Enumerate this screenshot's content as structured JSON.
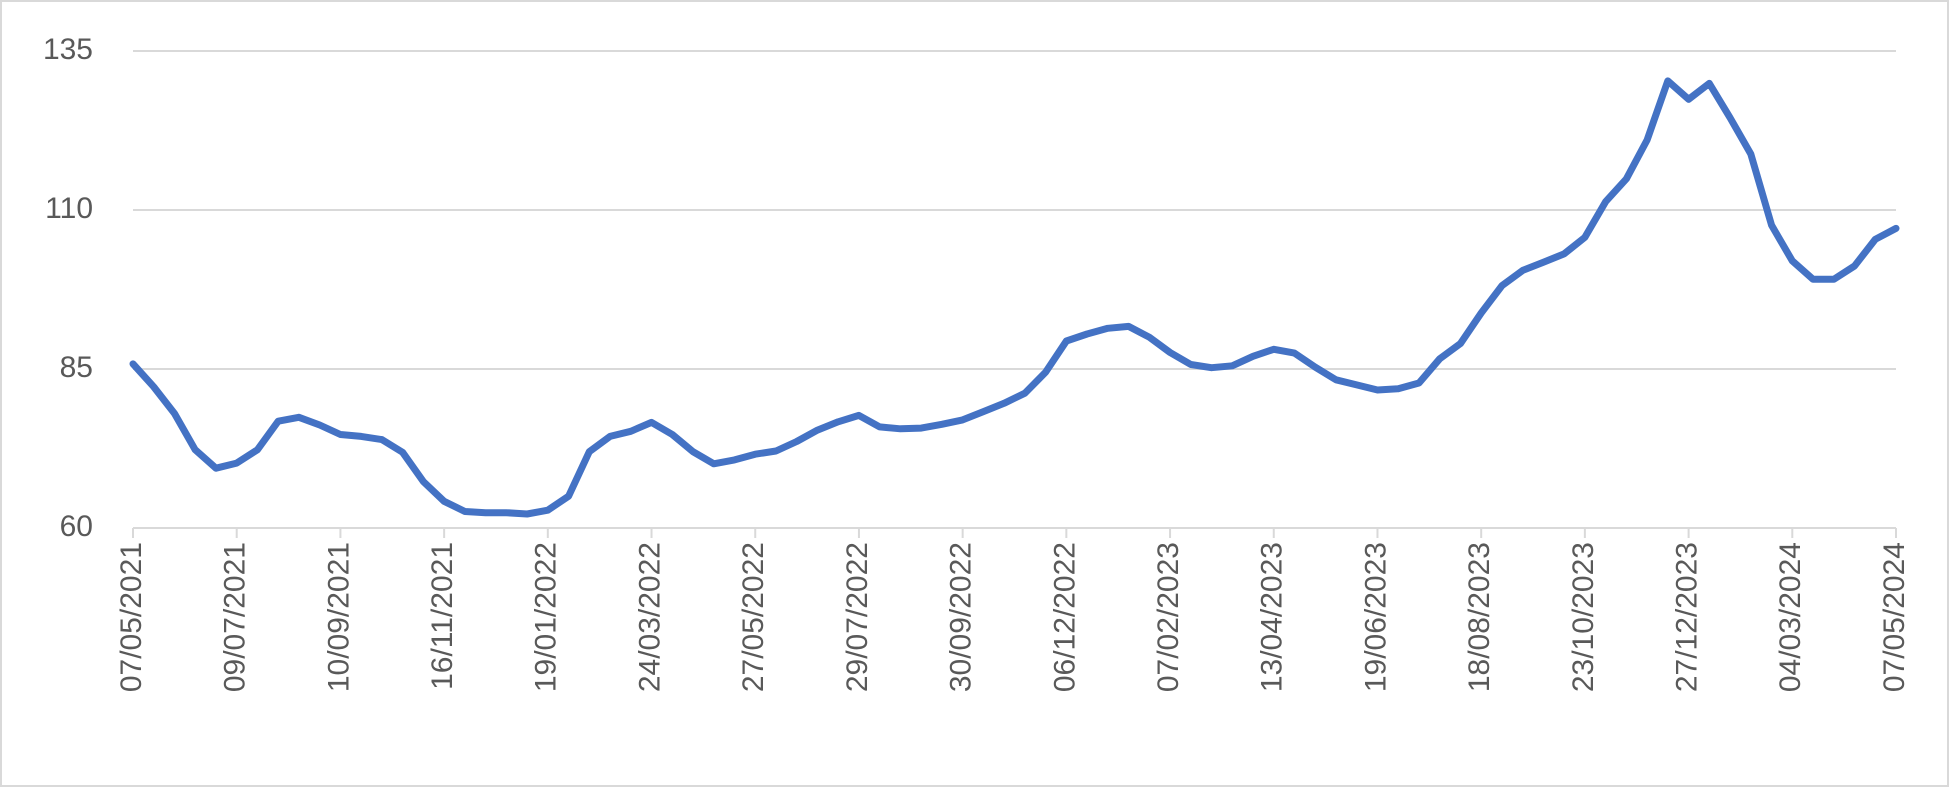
{
  "chart_data": {
    "type": "line",
    "categories": [
      "07/05/2021",
      null,
      null,
      null,
      null,
      "09/07/2021",
      null,
      null,
      null,
      null,
      "10/09/2021",
      null,
      null,
      null,
      null,
      "16/11/2021",
      null,
      null,
      null,
      null,
      "19/01/2022",
      null,
      null,
      null,
      null,
      "24/03/2022",
      null,
      null,
      null,
      null,
      "27/05/2022",
      null,
      null,
      null,
      null,
      "29/07/2022",
      null,
      null,
      null,
      null,
      "30/09/2022",
      null,
      null,
      null,
      null,
      "06/12/2022",
      null,
      null,
      null,
      null,
      "07/02/2023",
      null,
      null,
      null,
      null,
      "13/04/2023",
      null,
      null,
      null,
      null,
      "19/06/2023",
      null,
      null,
      null,
      null,
      "18/08/2023",
      null,
      null,
      null,
      null,
      "23/10/2023",
      null,
      null,
      null,
      null,
      "27/12/2023",
      null,
      null,
      null,
      null,
      "04/03/2024",
      null,
      null,
      null,
      null,
      "07/05/2024"
    ],
    "series": [
      {
        "color": "#4472c4",
        "values": [
          85.8,
          82.2,
          78,
          72.3,
          69.4,
          70.2,
          72.3,
          76.8,
          77.4,
          76.2,
          74.7,
          74.4,
          73.9,
          71.9,
          67.3,
          64.2,
          62.6,
          62.4,
          62.4,
          62.2,
          62.8,
          65,
          72,
          74.4,
          75.2,
          76.6,
          74.7,
          72,
          70.1,
          70.7,
          71.6,
          72.1,
          73.6,
          75.4,
          76.7,
          77.7,
          75.9,
          75.6,
          75.7,
          76.3,
          77,
          78.3,
          79.6,
          81.2,
          84.5,
          89.4,
          90.5,
          91.4,
          91.7,
          90,
          87.6,
          85.7,
          85.2,
          85.5,
          87,
          88.1,
          87.5,
          85.3,
          83.3,
          82.5,
          81.7,
          81.9,
          82.8,
          86.6,
          89,
          93.8,
          98.1,
          100.5,
          101.8,
          103.1,
          105.7,
          111.3,
          114.9,
          121,
          130.3,
          127.4,
          129.9,
          124.5,
          118.8,
          107.6,
          102,
          99.1,
          99.1,
          101.2,
          105.4,
          107.1
        ]
      }
    ],
    "ylim": [
      60,
      135
    ],
    "yticks": [
      60,
      85,
      110,
      135
    ],
    "grid": true
  }
}
